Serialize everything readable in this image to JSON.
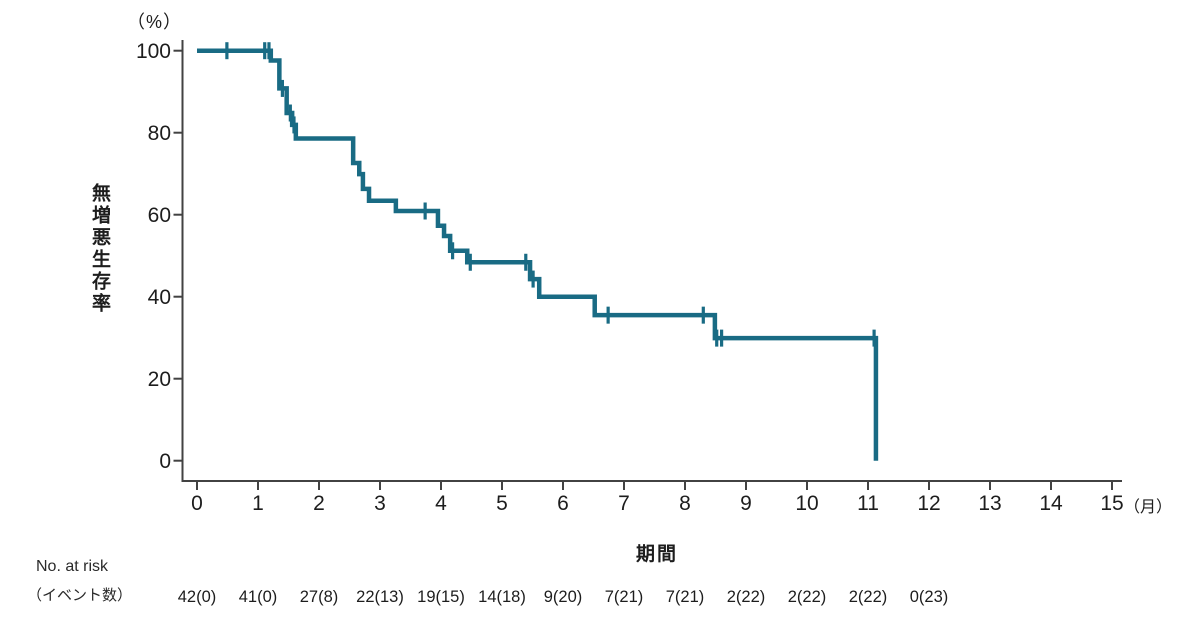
{
  "chart_data": {
    "type": "line",
    "variant": "kaplan_meier_step",
    "title": "",
    "ylabel": "無増悪生存率",
    "y_unit_label": "（%）",
    "xlabel": "期間",
    "x_unit_label": "（月）",
    "xlim": [
      0,
      15
    ],
    "ylim": [
      0,
      100
    ],
    "x_ticks": [
      0,
      1,
      2,
      3,
      4,
      5,
      6,
      7,
      8,
      9,
      10,
      11,
      12,
      13,
      14,
      15
    ],
    "y_ticks": [
      0,
      20,
      40,
      60,
      80,
      100
    ],
    "grid": false,
    "legend": null,
    "line_color": "#196b84",
    "axis_color": "#424242",
    "text_color": "#1d1d1d",
    "steps": [
      [
        0,
        100
      ],
      [
        1.21,
        97.6
      ],
      [
        1.35,
        90.8
      ],
      [
        1.47,
        84.8
      ],
      [
        1.56,
        81.9
      ],
      [
        1.62,
        78.6
      ],
      [
        2.56,
        72.6
      ],
      [
        2.66,
        69.9
      ],
      [
        2.72,
        66.3
      ],
      [
        2.82,
        63.4
      ],
      [
        3.26,
        60.9
      ],
      [
        3.95,
        57.3
      ],
      [
        4.05,
        54.8
      ],
      [
        4.15,
        51.2
      ],
      [
        4.43,
        48.4
      ],
      [
        5.46,
        44.3
      ],
      [
        5.61,
        40.0
      ],
      [
        6.52,
        35.5
      ],
      [
        8.49,
        29.9
      ],
      [
        11.13,
        0
      ]
    ],
    "censor_marks": [
      [
        0.49,
        100
      ],
      [
        1.11,
        100
      ],
      [
        1.18,
        100
      ],
      [
        1.4,
        90.8
      ],
      [
        1.53,
        84.8
      ],
      [
        1.59,
        81.9
      ],
      [
        3.74,
        60.9
      ],
      [
        4.19,
        51.2
      ],
      [
        4.48,
        48.4
      ],
      [
        5.39,
        48.4
      ],
      [
        5.51,
        44.3
      ],
      [
        6.74,
        35.5
      ],
      [
        8.3,
        35.5
      ],
      [
        8.52,
        29.9
      ],
      [
        8.6,
        29.9
      ],
      [
        11.1,
        29.9
      ]
    ],
    "at_risk": {
      "label_line1": "No. at risk",
      "label_line2": "（イベント数）",
      "times": [
        0,
        1,
        2,
        3,
        4,
        5,
        6,
        7,
        8,
        9,
        10,
        11,
        12
      ],
      "values": [
        "42(0)",
        "41(0)",
        "27(8)",
        "22(13)",
        "19(15)",
        "14(18)",
        "9(20)",
        "7(21)",
        "7(21)",
        "2(22)",
        "2(22)",
        "2(22)",
        "0(23)"
      ]
    }
  }
}
